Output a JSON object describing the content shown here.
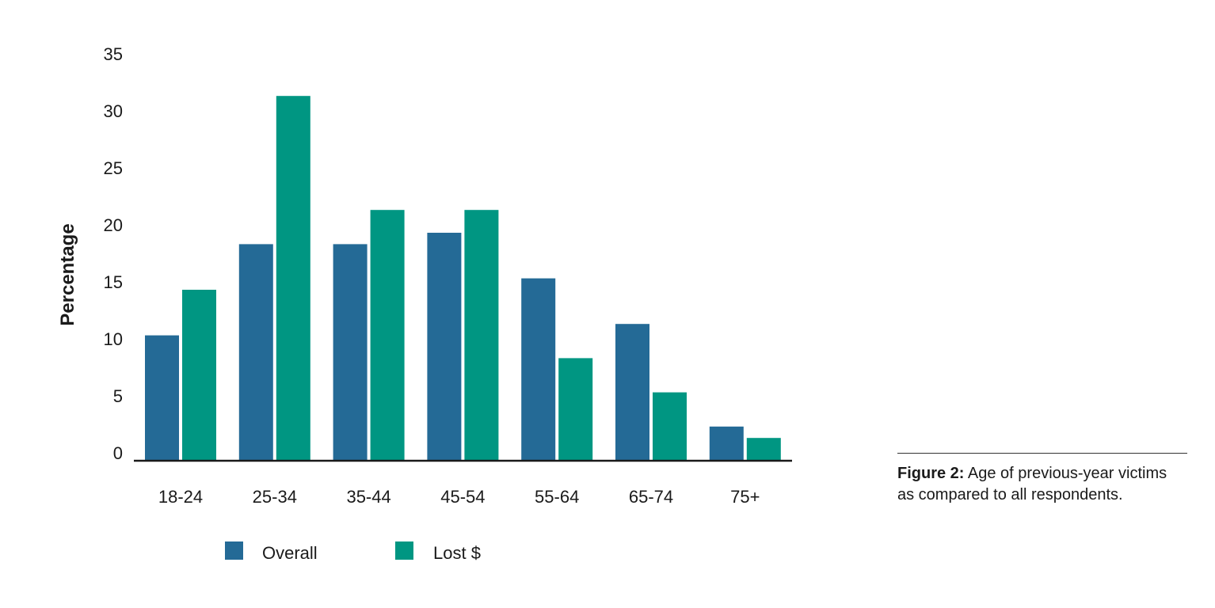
{
  "chart_data": {
    "type": "bar",
    "ylabel": "Percentage",
    "xlabel": "",
    "ylim": [
      0,
      35
    ],
    "yticks": [
      "0",
      "5",
      "10",
      "15",
      "20",
      "25",
      "30",
      "35"
    ],
    "grid": false,
    "legend_position": "bottom",
    "categories": [
      "18-24",
      "25-34",
      "35-44",
      "45-54",
      "55-64",
      "65-74",
      "75+"
    ],
    "series": [
      {
        "name": "Overall",
        "color": "#246a96",
        "values": [
          11,
          19,
          19,
          20,
          16,
          12,
          3
        ]
      },
      {
        "name": "Lost $",
        "color": "#009682",
        "values": [
          15,
          32,
          22,
          22,
          9,
          6,
          2
        ]
      }
    ]
  },
  "caption": {
    "label": "Figure 2:",
    "text": " Age of previous-year victims as compared to all respondents."
  }
}
